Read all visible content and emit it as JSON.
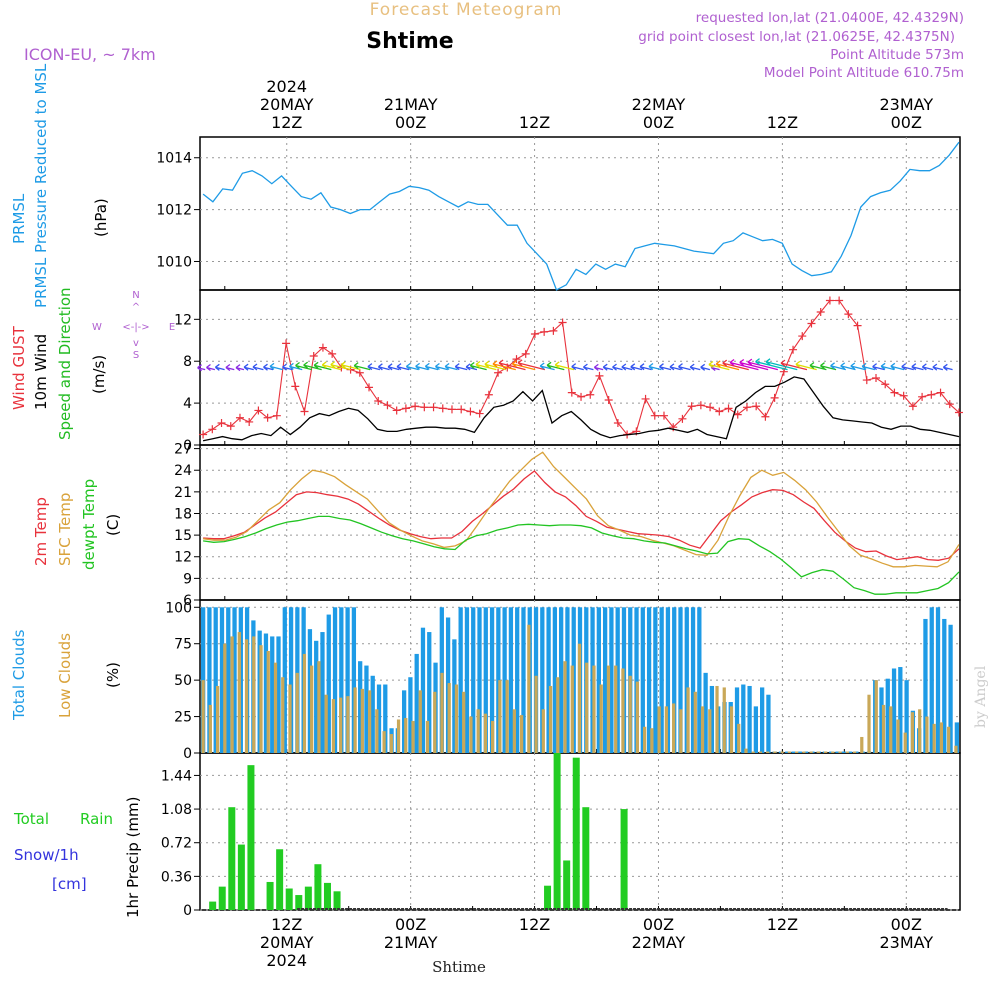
{
  "header": {
    "title": "Forecast Meteogram",
    "location": "Shtime",
    "model": "ICON-EU, ~ 7km",
    "requested": "requested lon,lat (21.0400E, 42.4329N)",
    "gridpoint": "grid point closest lon,lat (21.0625E, 42.4375N)",
    "point_alt": "Point Altitude 573m",
    "model_alt": "Model Point Altitude 610.75m",
    "credit": "by Angel",
    "footer": "Shtime"
  },
  "time_axis": {
    "top": [
      {
        "t": 12,
        "lines": [
          "2024",
          "20MAY",
          "12Z"
        ]
      },
      {
        "t": 24,
        "lines": [
          "21MAY",
          "00Z"
        ]
      },
      {
        "t": 36,
        "lines": [
          "12Z"
        ]
      },
      {
        "t": 48,
        "lines": [
          "22MAY",
          "00Z"
        ]
      },
      {
        "t": 60,
        "lines": [
          "12Z"
        ]
      },
      {
        "t": 72,
        "lines": [
          "23MAY",
          "00Z"
        ]
      }
    ],
    "bottom": [
      {
        "t": 12,
        "lines": [
          "12Z",
          "20MAY",
          "2024"
        ]
      },
      {
        "t": 24,
        "lines": [
          "00Z",
          "21MAY"
        ]
      },
      {
        "t": 36,
        "lines": [
          "12Z"
        ]
      },
      {
        "t": 48,
        "lines": [
          "00Z",
          "22MAY"
        ]
      },
      {
        "t": 60,
        "lines": [
          "12Z"
        ]
      },
      {
        "t": 72,
        "lines": [
          "00Z",
          "23MAY"
        ]
      }
    ]
  },
  "colors": {
    "prmsl": "#1e9be6",
    "gust": "#e8323c",
    "wind": "#000000",
    "dir": "#22bb22",
    "temp": "#e8323c",
    "sfc": "#d9a23a",
    "dew": "#22c422",
    "total_cloud": "#1e9be6",
    "low_cloud": "#c9a858",
    "rain": "#22cc22",
    "snow": "#3333dd",
    "header": "#b060d0",
    "title": "#e8c080"
  },
  "chart_data": [
    {
      "type": "line",
      "title": "PRMSL Pressure Reduced to MSL",
      "ylabel": "(hPa)",
      "ylim": [
        1008.9,
        1014.8
      ],
      "yticks": [
        1010,
        1012,
        1014
      ],
      "series": [
        {
          "name": "PRMSL",
          "values": [
            1012.6,
            1012.3,
            1012.8,
            1012.75,
            1013.4,
            1013.5,
            1013.3,
            1013.0,
            1013.3,
            1012.9,
            1012.5,
            1012.4,
            1012.65,
            1012.1,
            1012.0,
            1011.85,
            1012.0,
            1012.0,
            1012.3,
            1012.6,
            1012.7,
            1012.9,
            1012.85,
            1012.75,
            1012.5,
            1012.3,
            1012.1,
            1012.3,
            1012.2,
            1012.2,
            1011.8,
            1011.4,
            1011.4,
            1010.7,
            1010.3,
            1009.9,
            1008.9,
            1009.1,
            1009.7,
            1009.5,
            1009.9,
            1009.7,
            1009.9,
            1009.8,
            1010.5,
            1010.6,
            1010.7,
            1010.65,
            1010.6,
            1010.5,
            1010.4,
            1010.35,
            1010.3,
            1010.7,
            1010.8,
            1011.1,
            1010.95,
            1010.8,
            1010.85,
            1010.7,
            1009.9,
            1009.65,
            1009.45,
            1009.5,
            1009.6,
            1010.2,
            1011.0,
            1012.1,
            1012.5,
            1012.65,
            1012.75,
            1013.1,
            1013.55,
            1013.5,
            1013.5,
            1013.7,
            1014.1,
            1014.6
          ]
        }
      ]
    },
    {
      "type": "line",
      "title": "Wind GUST / 10m Wind Speed and Direction",
      "ylabel": "(m/s)",
      "ylim": [
        0,
        14.8
      ],
      "yticks": [
        0,
        4,
        8,
        12
      ],
      "compass": {
        "n": "N",
        "s": "S",
        "w": "W",
        "e": "E",
        "arrows": "<-|->",
        "up": "^",
        "down": "v"
      },
      "series": [
        {
          "name": "Wind GUST",
          "values": [
            1.0,
            1.5,
            2.1,
            1.8,
            2.6,
            2.2,
            3.3,
            2.6,
            2.8,
            9.7,
            5.6,
            3.2,
            8.5,
            9.3,
            8.7,
            7.4,
            7.2,
            6.9,
            5.5,
            4.2,
            3.8,
            3.3,
            3.5,
            3.7,
            3.6,
            3.6,
            3.5,
            3.4,
            3.4,
            3.2,
            3.0,
            4.8,
            6.9,
            7.4,
            8.2,
            8.7,
            10.6,
            10.8,
            10.9,
            11.7,
            5.0,
            4.6,
            4.8,
            6.6,
            4.3,
            2.1,
            1.0,
            1.3,
            4.4,
            2.8,
            2.8,
            1.7,
            2.5,
            3.7,
            3.8,
            3.6,
            3.2,
            3.5,
            2.9,
            3.6,
            3.7,
            2.7,
            4.5,
            7.0,
            9.1,
            10.4,
            11.6,
            12.7,
            13.8,
            13.8,
            12.5,
            11.4,
            6.2,
            6.4,
            5.8,
            5.0,
            4.7,
            3.7,
            4.6,
            4.8,
            5.0,
            3.9,
            3.1
          ]
        },
        {
          "name": "10m Wind",
          "values": [
            0.4,
            0.6,
            0.8,
            0.6,
            0.5,
            0.9,
            1.1,
            0.9,
            1.7,
            1.0,
            1.7,
            2.6,
            3.0,
            2.8,
            3.2,
            3.5,
            3.3,
            2.5,
            1.5,
            1.3,
            1.3,
            1.5,
            1.6,
            1.7,
            1.7,
            1.6,
            1.6,
            1.5,
            1.2,
            2.6,
            3.6,
            3.8,
            4.2,
            5.1,
            4.2,
            5.2,
            2.1,
            2.8,
            3.2,
            2.4,
            1.5,
            1.0,
            0.7,
            0.9,
            1.0,
            1.1,
            1.3,
            1.4,
            1.6,
            1.4,
            1.2,
            1.5,
            1.0,
            0.8,
            0.6,
            3.6,
            4.2,
            5.0,
            5.6,
            5.6,
            6.0,
            6.5,
            6.3,
            5.0,
            3.7,
            2.6,
            2.4,
            2.3,
            2.2,
            2.1,
            1.7,
            1.5,
            1.8,
            1.8,
            1.5,
            1.4,
            1.2,
            1.0,
            0.8
          ]
        }
      ]
    },
    {
      "type": "line",
      "title": "2m Temp / SFC Temp / dewpt Temp",
      "ylabel": "(C)",
      "ylim": [
        6,
        27.5
      ],
      "yticks": [
        6,
        9,
        12,
        15,
        18,
        21,
        24,
        27
      ],
      "series": [
        {
          "name": "2m Temp",
          "values": [
            14.6,
            14.5,
            14.5,
            14.9,
            15.4,
            16.4,
            17.4,
            18.2,
            19.4,
            20.6,
            21.0,
            20.9,
            20.6,
            20.4,
            20.0,
            19.3,
            18.3,
            17.3,
            16.4,
            15.7,
            15.2,
            14.8,
            14.5,
            14.6,
            14.6,
            15.5,
            16.9,
            18.0,
            19.2,
            20.4,
            21.4,
            22.8,
            23.9,
            22.3,
            21.0,
            20.3,
            19.1,
            17.6,
            16.9,
            16.1,
            15.8,
            15.5,
            15.2,
            15.1,
            15.0,
            14.8,
            14.3,
            13.6,
            13.2,
            15.1,
            17.0,
            18.2,
            19.2,
            20.3,
            20.9,
            21.3,
            21.2,
            20.6,
            19.6,
            18.7,
            17.0,
            15.4,
            14.2,
            13.2,
            12.7,
            12.8,
            12.1,
            11.6,
            11.8,
            12.0,
            11.6,
            11.5,
            11.8,
            13.1
          ]
        },
        {
          "name": "SFC Temp",
          "values": [
            14.5,
            14.3,
            14.3,
            14.7,
            15.5,
            17.0,
            18.5,
            19.5,
            21.3,
            22.8,
            24.0,
            23.7,
            23.1,
            22.0,
            21.0,
            20.0,
            18.3,
            16.7,
            15.7,
            14.9,
            14.2,
            13.8,
            13.3,
            13.5,
            14.2,
            16.3,
            18.5,
            20.5,
            22.5,
            24.0,
            25.5,
            26.5,
            24.5,
            23.0,
            21.5,
            20.0,
            17.7,
            16.3,
            15.7,
            15.0,
            14.8,
            14.3,
            13.9,
            13.5,
            12.9,
            12.3,
            12.2,
            14.3,
            17.6,
            20.5,
            23.0,
            24.0,
            23.3,
            23.7,
            22.6,
            21.3,
            19.6,
            17.5,
            15.5,
            13.5,
            12.2,
            11.7,
            11.1,
            10.6,
            10.6,
            10.8,
            10.7,
            10.6,
            11.3,
            13.7
          ]
        },
        {
          "name": "dewpt Temp",
          "values": [
            14.2,
            14.0,
            14.1,
            14.4,
            14.8,
            15.3,
            15.9,
            16.4,
            16.8,
            17.0,
            17.3,
            17.6,
            17.6,
            17.3,
            17.1,
            16.6,
            16.0,
            15.4,
            14.9,
            14.5,
            14.2,
            13.8,
            13.4,
            13.1,
            13.0,
            14.3,
            14.9,
            15.2,
            15.7,
            16.0,
            16.4,
            16.5,
            16.4,
            16.3,
            16.4,
            16.4,
            16.3,
            16.0,
            15.3,
            14.9,
            14.6,
            14.5,
            14.2,
            14.0,
            13.9,
            13.5,
            13.1,
            12.8,
            12.4,
            12.5,
            14.1,
            14.5,
            14.4,
            13.5,
            12.7,
            11.7,
            10.5,
            9.2,
            9.8,
            10.2,
            10.0,
            8.9,
            7.7,
            7.3,
            6.8,
            6.8,
            7.0,
            7.0,
            7.0,
            7.3,
            7.6,
            8.4,
            9.9
          ]
        }
      ]
    },
    {
      "type": "bar",
      "title": "Total Clouds / Low Clouds",
      "ylabel": "(%)",
      "ylim": [
        0,
        105
      ],
      "yticks": [
        0,
        25,
        50,
        75,
        100
      ],
      "series": [
        {
          "name": "Total Clouds",
          "values": [
            100,
            100,
            100,
            100,
            100,
            100,
            100,
            100,
            91,
            84,
            82,
            80,
            80,
            100,
            100,
            100,
            100,
            85,
            77,
            83,
            95,
            100,
            100,
            100,
            100,
            63,
            60,
            53,
            47,
            47,
            17,
            17,
            43,
            52,
            68,
            86,
            83,
            62,
            100,
            93,
            78,
            100,
            100,
            100,
            100,
            100,
            100,
            100,
            100,
            100,
            100,
            100,
            100,
            100,
            100,
            100,
            100,
            100,
            100,
            100,
            100,
            100,
            100,
            100,
            100,
            100,
            100,
            100,
            100,
            100,
            100,
            100,
            100,
            100,
            100,
            100,
            100,
            100,
            100,
            100,
            55,
            46,
            32,
            35,
            35,
            45,
            47,
            46,
            32,
            45,
            40,
            1,
            1,
            1,
            1,
            1,
            1,
            1,
            1,
            1,
            1,
            1,
            1,
            1,
            1,
            1,
            1,
            50,
            45,
            51,
            58,
            59,
            50,
            29,
            17,
            92,
            100,
            100,
            92,
            88,
            21
          ]
        },
        {
          "name": "Low Clouds",
          "values": [
            50,
            33,
            46,
            75,
            80,
            83,
            78,
            80,
            74,
            70,
            62,
            52,
            47,
            55,
            68,
            60,
            63,
            40,
            37,
            38,
            39,
            45,
            44,
            43,
            30,
            15,
            13,
            23,
            24,
            22,
            43,
            22,
            42,
            55,
            48,
            47,
            42,
            25,
            30,
            27,
            22,
            50,
            50,
            30,
            26,
            88,
            53,
            30,
            46,
            52,
            63,
            60,
            75,
            62,
            60,
            47,
            60,
            60,
            58,
            53,
            49,
            18,
            17,
            32,
            32,
            34,
            30,
            45,
            42,
            32,
            30,
            46,
            45,
            32,
            20,
            3,
            1,
            1,
            1,
            1,
            1,
            1,
            1,
            1,
            1,
            1,
            1,
            1,
            1,
            1,
            1,
            11,
            40,
            50,
            33,
            32,
            23,
            14,
            28,
            30,
            25,
            20,
            21,
            18,
            5
          ]
        }
      ]
    },
    {
      "type": "bar",
      "title": "Total Rain / Snow/1h [cm]",
      "ylabel": "1hr Precip (mm)",
      "ylim": [
        0,
        1.68
      ],
      "yticks": [
        0,
        0.36,
        0.72,
        1.08,
        1.44
      ],
      "yticklabels": [
        "0",
        "0.36",
        "0.72",
        "1.08",
        "1.44"
      ],
      "rain_legend": [
        "Total",
        "Rain"
      ],
      "snow_legend": [
        "Snow/1h",
        "[cm]"
      ],
      "series": [
        {
          "name": "Total Rain",
          "values": [
            0,
            0.09,
            0.25,
            1.1,
            0.7,
            1.55,
            0,
            0.3,
            0.65,
            0.23,
            0.16,
            0.25,
            0.49,
            0.29,
            0.2,
            0,
            0,
            0,
            0,
            0,
            0,
            0,
            0,
            0,
            0,
            0,
            0,
            0,
            0,
            0,
            0,
            0,
            0,
            0,
            0,
            0,
            0.26,
            1.68,
            0.53,
            1.63,
            1.1,
            0,
            0,
            0,
            1.08,
            0,
            0,
            0,
            0,
            0,
            0,
            0,
            0,
            0,
            0,
            0,
            0,
            0,
            0,
            0,
            0,
            0,
            0,
            0,
            0,
            0,
            0,
            0,
            0,
            0,
            0,
            0,
            0,
            0,
            0,
            0,
            0,
            0,
            0,
            0
          ]
        },
        {
          "name": "Snow/1h",
          "values": []
        }
      ]
    }
  ]
}
